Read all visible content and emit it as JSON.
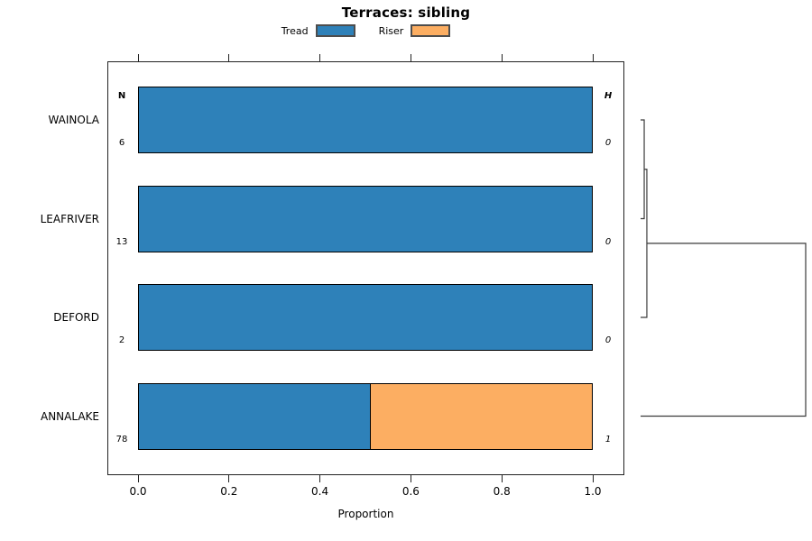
{
  "title": "Terraces: sibling",
  "xlabel": "Proportion",
  "columns": {
    "left_header": "N",
    "right_header": "H"
  },
  "legend": [
    {
      "label": "Tread",
      "color": "#2E81B9"
    },
    {
      "label": "Riser",
      "color": "#FCAE62"
    }
  ],
  "chart_data": {
    "type": "bar",
    "orientation": "horizontal",
    "stacked": true,
    "title": "Terraces: sibling",
    "xlabel": "Proportion",
    "xlim": [
      0,
      1
    ],
    "x_ticks": [
      0,
      0.2,
      0.4,
      0.6,
      0.8,
      1.0
    ],
    "x_tick_labels": [
      "0.0",
      "0.2",
      "0.4",
      "0.6",
      "0.8",
      "1.0"
    ],
    "grid": false,
    "legend_position": "top",
    "categories": [
      "WAINOLA",
      "LEAFRIVER",
      "DEFORD",
      "ANNALAKE"
    ],
    "n_values": [
      6,
      13,
      2,
      78
    ],
    "h_values": [
      0,
      0,
      0,
      1
    ],
    "series": [
      {
        "name": "Tread",
        "color": "#2E81B9",
        "values": [
          1.0,
          1.0,
          1.0,
          0.513
        ]
      },
      {
        "name": "Riser",
        "color": "#FCAE62",
        "values": [
          0.0,
          0.0,
          0.0,
          0.487
        ]
      }
    ],
    "dendrogram": {
      "axis_max": 1.0,
      "merges": [
        {
          "a": {
            "type": "leaf",
            "row": 0
          },
          "b": {
            "type": "leaf",
            "row": 1
          },
          "height": 0.022
        },
        {
          "a": {
            "type": "merge",
            "idx": 0
          },
          "b": {
            "type": "leaf",
            "row": 2
          },
          "height": 0.038
        },
        {
          "a": {
            "type": "merge",
            "idx": 1
          },
          "b": {
            "type": "leaf",
            "row": 3
          },
          "height": 1.0
        }
      ]
    }
  }
}
